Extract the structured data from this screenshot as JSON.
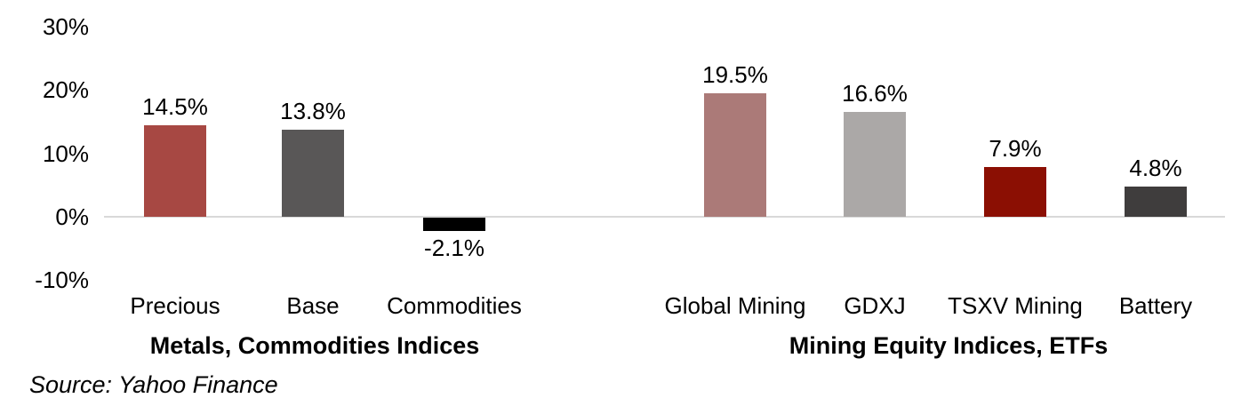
{
  "chart_data": {
    "type": "bar",
    "title": "",
    "xlabel": "",
    "ylabel": "",
    "ylim": [
      -10,
      30
    ],
    "grid": false,
    "legend": false,
    "axis_line_color": "#D9D9D9",
    "yticks": [
      {
        "label": "30%",
        "value": 30
      },
      {
        "label": "20%",
        "value": 20
      },
      {
        "label": "10%",
        "value": 10
      },
      {
        "label": "0%",
        "value": 0
      },
      {
        "label": "-10%",
        "value": -10
      }
    ],
    "groups": [
      {
        "title": "Metals, Commodities Indices",
        "items": [
          {
            "category": "Precious",
            "value": 14.5,
            "label": "14.5%",
            "color": "#A74843"
          },
          {
            "category": "Base",
            "value": 13.8,
            "label": "13.8%",
            "color": "#595757"
          },
          {
            "category": "Commodities",
            "value": -2.1,
            "label": "-2.1%",
            "color": "#000000"
          }
        ]
      },
      {
        "title": "Mining Equity Indices, ETFs",
        "items": [
          {
            "category": "Global Mining",
            "value": 19.5,
            "label": "19.5%",
            "color": "#AB7A78"
          },
          {
            "category": "GDXJ",
            "value": 16.6,
            "label": "16.6%",
            "color": "#ABA8A7"
          },
          {
            "category": "TSXV Mining",
            "value": 7.9,
            "label": "7.9%",
            "color": "#8B0F03"
          },
          {
            "category": "Battery",
            "value": 4.8,
            "label": "4.8%",
            "color": "#3F3D3D"
          }
        ]
      }
    ],
    "source": "Source: Yahoo Finance"
  }
}
